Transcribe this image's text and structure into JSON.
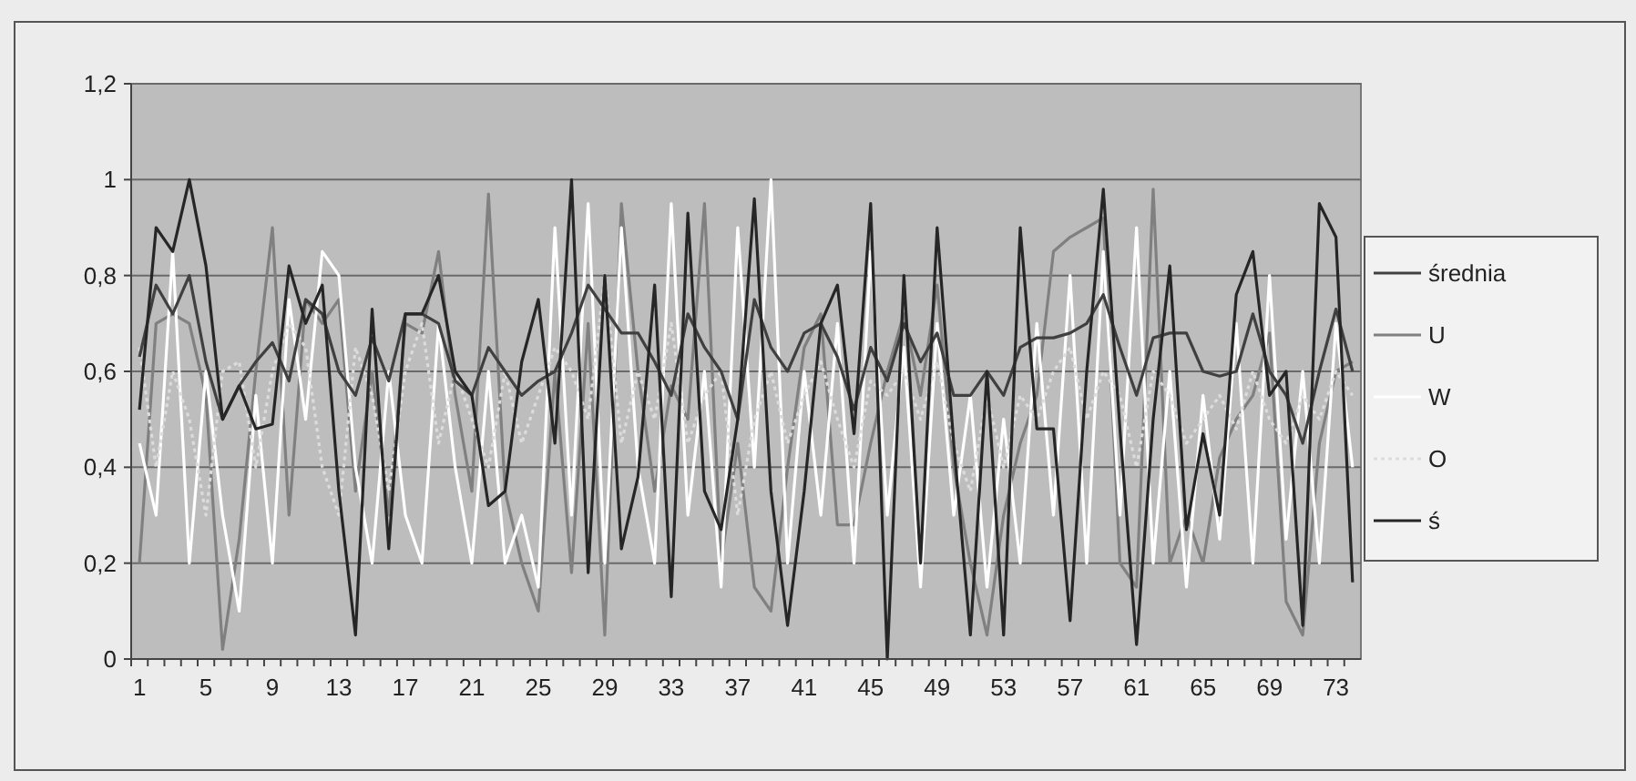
{
  "chart_data": {
    "type": "line",
    "categories": [
      "1",
      null,
      null,
      null,
      "5",
      null,
      null,
      null,
      "9",
      null,
      null,
      null,
      "13",
      null,
      null,
      null,
      "17",
      null,
      null,
      null,
      "21",
      null,
      null,
      null,
      "25",
      null,
      null,
      null,
      "29",
      null,
      null,
      null,
      "33",
      null,
      null,
      null,
      "37",
      null,
      null,
      null,
      "41",
      null,
      null,
      null,
      "45",
      null,
      null,
      null,
      "49",
      null,
      null,
      null,
      "53",
      null,
      null,
      null,
      "57",
      null,
      null,
      null,
      "61",
      null,
      null,
      null,
      "65",
      null,
      null,
      null,
      "69",
      null,
      null,
      null,
      "73",
      null
    ],
    "ylim": [
      0,
      1.2
    ],
    "yticks": [
      {
        "value": 0,
        "label": "0"
      },
      {
        "value": 0.2,
        "label": "0,2"
      },
      {
        "value": 0.4,
        "label": "0,4"
      },
      {
        "value": 0.6,
        "label": "0,6"
      },
      {
        "value": 0.8,
        "label": "0,8"
      },
      {
        "value": 1,
        "label": "1"
      },
      {
        "value": 1.2,
        "label": "1,2"
      }
    ],
    "grid": "y",
    "legend": "right",
    "marker": "none",
    "series": [
      {
        "name": "U",
        "color": "#808080",
        "values": [
          0.2,
          0.7,
          0.72,
          0.7,
          0.55,
          0.02,
          0.25,
          0.6,
          0.9,
          0.3,
          0.75,
          0.7,
          0.75,
          0.35,
          0.6,
          0.3,
          0.7,
          0.68,
          0.85,
          0.55,
          0.35,
          0.97,
          0.35,
          0.2,
          0.1,
          0.6,
          0.18,
          0.7,
          0.05,
          0.95,
          0.6,
          0.35,
          0.57,
          0.5,
          0.95,
          0.2,
          0.45,
          0.15,
          0.1,
          0.4,
          0.65,
          0.72,
          0.28,
          0.28,
          0.45,
          0.6,
          0.72,
          0.55,
          0.78,
          0.4,
          0.2,
          0.05,
          0.3,
          0.45,
          0.55,
          0.85,
          0.88,
          0.9,
          0.92,
          0.2,
          0.15,
          0.98,
          0.2,
          0.3,
          0.2,
          0.42,
          0.5,
          0.55,
          0.68,
          0.12,
          0.05,
          0.45,
          0.6,
          0.62
        ]
      },
      {
        "name": "W",
        "color": "#ffffff",
        "values": [
          0.45,
          0.3,
          0.85,
          0.2,
          0.6,
          0.3,
          0.1,
          0.55,
          0.2,
          0.75,
          0.5,
          0.85,
          0.8,
          0.4,
          0.2,
          0.6,
          0.3,
          0.2,
          0.7,
          0.4,
          0.2,
          0.6,
          0.2,
          0.3,
          0.15,
          0.9,
          0.3,
          0.95,
          0.2,
          0.9,
          0.4,
          0.2,
          0.95,
          0.3,
          0.6,
          0.15,
          0.9,
          0.4,
          1.0,
          0.2,
          0.6,
          0.3,
          0.7,
          0.2,
          0.85,
          0.3,
          0.65,
          0.15,
          0.7,
          0.3,
          0.55,
          0.15,
          0.5,
          0.2,
          0.7,
          0.3,
          0.8,
          0.2,
          0.85,
          0.3,
          0.9,
          0.2,
          0.6,
          0.15,
          0.55,
          0.25,
          0.7,
          0.2,
          0.8,
          0.25,
          0.6,
          0.2,
          0.7,
          0.4
        ]
      },
      {
        "name": "O",
        "color": "#dcdcdc",
        "line_style": "dotted",
        "values": [
          0.65,
          0.4,
          0.6,
          0.5,
          0.3,
          0.6,
          0.62,
          0.4,
          0.6,
          0.7,
          0.65,
          0.4,
          0.3,
          0.65,
          0.55,
          0.35,
          0.6,
          0.7,
          0.45,
          0.6,
          0.5,
          0.4,
          0.6,
          0.45,
          0.55,
          0.65,
          0.6,
          0.5,
          0.8,
          0.45,
          0.6,
          0.5,
          0.7,
          0.45,
          0.55,
          0.6,
          0.3,
          0.5,
          0.6,
          0.45,
          0.55,
          0.62,
          0.5,
          0.4,
          0.58,
          0.55,
          0.6,
          0.5,
          0.62,
          0.45,
          0.35,
          0.55,
          0.4,
          0.55,
          0.5,
          0.6,
          0.65,
          0.5,
          0.6,
          0.55,
          0.4,
          0.6,
          0.55,
          0.45,
          0.5,
          0.55,
          0.48,
          0.6,
          0.5,
          0.45,
          0.55,
          0.5,
          0.6,
          0.55
        ]
      },
      {
        "name": "średnia",
        "color": "#404040",
        "values": [
          0.63,
          0.78,
          0.72,
          0.8,
          0.62,
          0.5,
          0.57,
          0.62,
          0.66,
          0.58,
          0.75,
          0.72,
          0.6,
          0.55,
          0.67,
          0.58,
          0.72,
          0.72,
          0.7,
          0.58,
          0.55,
          0.65,
          0.6,
          0.55,
          0.58,
          0.6,
          0.68,
          0.78,
          0.73,
          0.68,
          0.68,
          0.62,
          0.55,
          0.72,
          0.65,
          0.6,
          0.5,
          0.75,
          0.65,
          0.6,
          0.68,
          0.7,
          0.63,
          0.52,
          0.65,
          0.58,
          0.7,
          0.62,
          0.68,
          0.55,
          0.55,
          0.6,
          0.55,
          0.65,
          0.67,
          0.67,
          0.68,
          0.7,
          0.76,
          0.65,
          0.55,
          0.67,
          0.68,
          0.68,
          0.6,
          0.59,
          0.6,
          0.72,
          0.6,
          0.55,
          0.45,
          0.6,
          0.73,
          0.6
        ]
      },
      {
        "name": "ś",
        "color": "#262626",
        "values": [
          0.52,
          0.9,
          0.85,
          1.0,
          0.82,
          0.5,
          0.57,
          0.48,
          0.49,
          0.82,
          0.7,
          0.78,
          0.35,
          0.05,
          0.73,
          0.23,
          0.72,
          0.72,
          0.8,
          0.6,
          0.55,
          0.32,
          0.35,
          0.62,
          0.75,
          0.45,
          1.0,
          0.18,
          0.8,
          0.23,
          0.38,
          0.78,
          0.13,
          0.93,
          0.35,
          0.27,
          0.5,
          0.96,
          0.35,
          0.07,
          0.35,
          0.7,
          0.78,
          0.47,
          0.95,
          0.0,
          0.8,
          0.2,
          0.9,
          0.45,
          0.05,
          0.6,
          0.05,
          0.9,
          0.48,
          0.48,
          0.08,
          0.6,
          0.98,
          0.48,
          0.03,
          0.5,
          0.82,
          0.27,
          0.47,
          0.3,
          0.76,
          0.85,
          0.55,
          0.6,
          0.07,
          0.95,
          0.88,
          0.16
        ]
      }
    ]
  }
}
